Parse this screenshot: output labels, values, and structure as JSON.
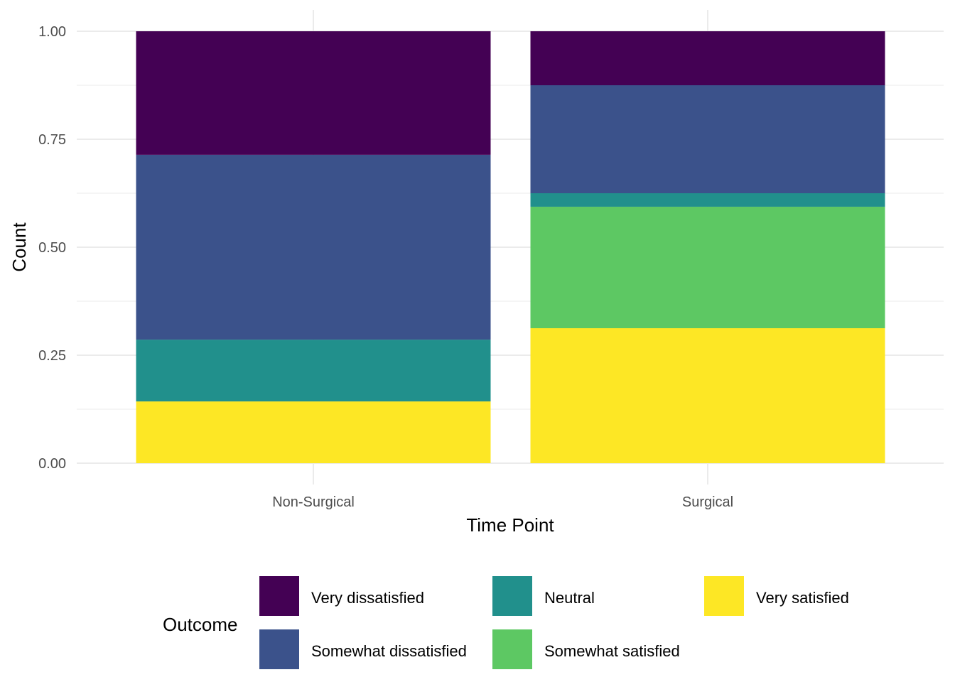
{
  "chart_data": {
    "type": "bar",
    "stacked": true,
    "xlabel": "Time Point",
    "ylabel": "Count",
    "ylim": [
      0,
      1
    ],
    "yticks": [
      "0.00",
      "0.25",
      "0.50",
      "0.75",
      "1.00"
    ],
    "categories": [
      "Non-Surgical",
      "Surgical"
    ],
    "series": [
      {
        "name": "Very satisfied",
        "color": "#FDE725",
        "values": [
          0.143,
          0.3125
        ]
      },
      {
        "name": "Somewhat satisfied",
        "color": "#5DC863",
        "values": [
          0.0,
          0.2813
        ]
      },
      {
        "name": "Neutral",
        "color": "#21908C",
        "values": [
          0.143,
          0.0312
        ]
      },
      {
        "name": "Somewhat dissatisfied",
        "color": "#3B528B",
        "values": [
          0.428,
          0.25
        ]
      },
      {
        "name": "Very dissatisfied",
        "color": "#440154",
        "values": [
          0.286,
          0.125
        ]
      }
    ],
    "legend": {
      "title": "Outcome",
      "placement": "bottom",
      "order": [
        "Very dissatisfied",
        "Somewhat dissatisfied",
        "Neutral",
        "Somewhat satisfied",
        "Very satisfied"
      ]
    },
    "grid": true
  }
}
